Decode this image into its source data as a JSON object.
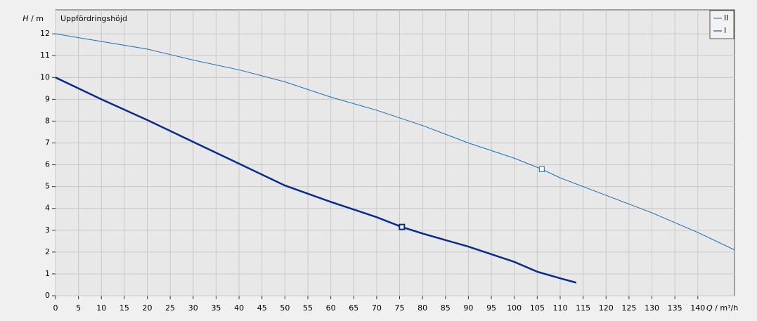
{
  "chart_data": {
    "type": "line",
    "title": "Uppfördringshöjd",
    "ylabel_symbol": "H",
    "ylabel_unit": "/ m",
    "xlabel_symbol": "Q",
    "xlabel_unit": "/ m³/h",
    "xlim": [
      0,
      148
    ],
    "ylim": [
      0,
      13.1
    ],
    "xticks": [
      0,
      5,
      10,
      15,
      20,
      25,
      30,
      35,
      40,
      45,
      50,
      55,
      60,
      65,
      70,
      75,
      80,
      85,
      90,
      95,
      100,
      105,
      110,
      115,
      120,
      125,
      130,
      135,
      140
    ],
    "yticks": [
      0,
      1,
      2,
      3,
      4,
      5,
      6,
      7,
      8,
      9,
      10,
      11,
      12
    ],
    "grid": true,
    "legend": "top-right",
    "series": [
      {
        "name": "II",
        "color": "#1a6fb0",
        "width": 1,
        "x": [
          0,
          10,
          20,
          25,
          30,
          40,
          50,
          60,
          70,
          80,
          90,
          100,
          106,
          110,
          120,
          130,
          140,
          148
        ],
        "values": [
          12,
          11.65,
          11.3,
          11.05,
          10.8,
          10.35,
          9.8,
          9.1,
          8.5,
          7.8,
          7.0,
          6.3,
          5.8,
          5.4,
          4.6,
          3.8,
          2.9,
          2.1
        ],
        "marker": {
          "x": 106,
          "y": 5.8
        }
      },
      {
        "name": "I",
        "color": "#0a2a8c",
        "width": 2.5,
        "x": [
          0,
          10,
          20,
          30,
          40,
          50,
          60,
          70,
          75.5,
          80,
          90,
          100,
          105,
          110,
          113.5
        ],
        "values": [
          10,
          9,
          8.05,
          7.05,
          6.05,
          5.05,
          4.3,
          3.6,
          3.15,
          2.85,
          2.25,
          1.55,
          1.1,
          0.8,
          0.6
        ],
        "marker": {
          "x": 75.5,
          "y": 3.15
        }
      }
    ]
  }
}
